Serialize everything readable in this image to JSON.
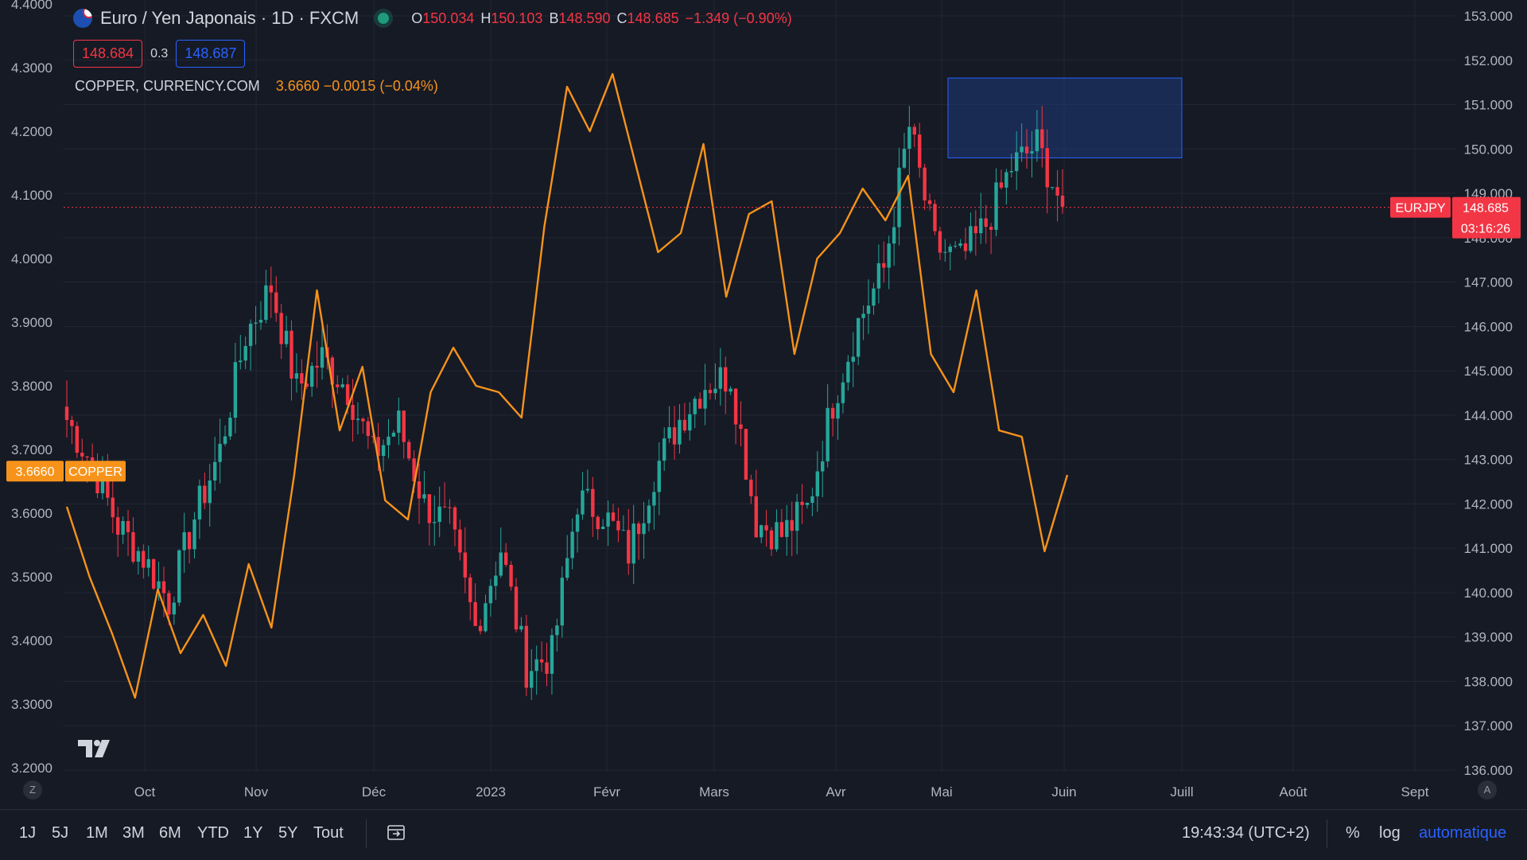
{
  "header": {
    "title": "Euro / Yen Japonais · 1D · FXCM",
    "ohlc": {
      "o_label": "O",
      "o": "150.034",
      "h_label": "H",
      "h": "150.103",
      "b_label": "B",
      "b": "148.590",
      "c_label": "C",
      "c": "148.685",
      "change": "−1.349 (−0.90%)"
    }
  },
  "quote": {
    "sell": "148.684",
    "spread": "0.3",
    "buy": "148.687"
  },
  "compare": {
    "name": "COPPER, CURRENCY.COM",
    "values": "3.6660 −0.0015 (−0.04%)"
  },
  "colors": {
    "background": "#161a25",
    "up": "#26a69a",
    "down": "#f23645",
    "copper": "#f7931a",
    "zone": "#1e3a7a",
    "accent": "#2962ff"
  },
  "chart_data": {
    "type": "candlestick",
    "x_axis": [
      "Oct",
      "Nov",
      "Déc",
      "2023",
      "Févr",
      "Mars",
      "Avr",
      "Mai",
      "Juin",
      "Juill",
      "Août",
      "Sept"
    ],
    "right_axis": {
      "ticks": [
        "153.000",
        "152.000",
        "151.000",
        "150.000",
        "149.000",
        "148.000",
        "147.000",
        "146.000",
        "145.000",
        "144.000",
        "143.000",
        "142.000",
        "141.000",
        "140.000",
        "139.000",
        "138.000",
        "137.000",
        "136.000"
      ],
      "ylim": [
        136,
        153
      ]
    },
    "left_axis": {
      "ticks": [
        "4.4000",
        "4.3000",
        "4.2000",
        "4.1000",
        "4.0000",
        "3.9000",
        "3.8000",
        "3.7000",
        "3.6000",
        "3.5000",
        "3.4000",
        "3.3000",
        "3.2000"
      ],
      "ylim": [
        3.2,
        4.4
      ]
    },
    "series": [
      {
        "name": "EURJPY",
        "kind": "candlestick",
        "price_label": "148.685",
        "countdown": "03:16:26",
        "closes_by_week": [
          143.9,
          142.9,
          141.5,
          140.8,
          139.8,
          141.7,
          143.2,
          145.8,
          146.9,
          144.6,
          145.3,
          144.6,
          143.1,
          143.8,
          142.0,
          141.5,
          139.2,
          141.0,
          138.3,
          138.6,
          142.1,
          141.8,
          140.9,
          142.7,
          143.9,
          144.7,
          144.9,
          141.6,
          141.3,
          141.9,
          144.3,
          146.1,
          147.3,
          150.5,
          147.8,
          147.5,
          148.3,
          149.6,
          150.1,
          148.7
        ]
      },
      {
        "name": "COPPER",
        "kind": "line",
        "price_label": "3.6660",
        "weekly": [
          3.61,
          3.5,
          3.41,
          3.31,
          3.48,
          3.38,
          3.44,
          3.36,
          3.52,
          3.42,
          3.66,
          3.95,
          3.73,
          3.83,
          3.62,
          3.59,
          3.79,
          3.86,
          3.8,
          3.79,
          3.75,
          4.05,
          4.27,
          4.2,
          4.29,
          4.15,
          4.01,
          4.04,
          4.18,
          3.94,
          4.07,
          4.09,
          3.85,
          4.0,
          4.04,
          4.11,
          4.06,
          4.13,
          3.85,
          3.79,
          3.95,
          3.73,
          3.72,
          3.54,
          3.66
        ]
      }
    ],
    "zone": {
      "price_top": 151.6,
      "price_bottom": 149.8
    }
  },
  "time_ranges": [
    "1J",
    "5J",
    "1M",
    "3M",
    "6M",
    "YTD",
    "1Y",
    "5Y",
    "Tout"
  ],
  "clock": "19:43:34 (UTC+2)",
  "options": {
    "percent": "%",
    "log": "log",
    "auto": "automatique"
  },
  "axis_buttons": {
    "left": "Z",
    "right": "A"
  }
}
